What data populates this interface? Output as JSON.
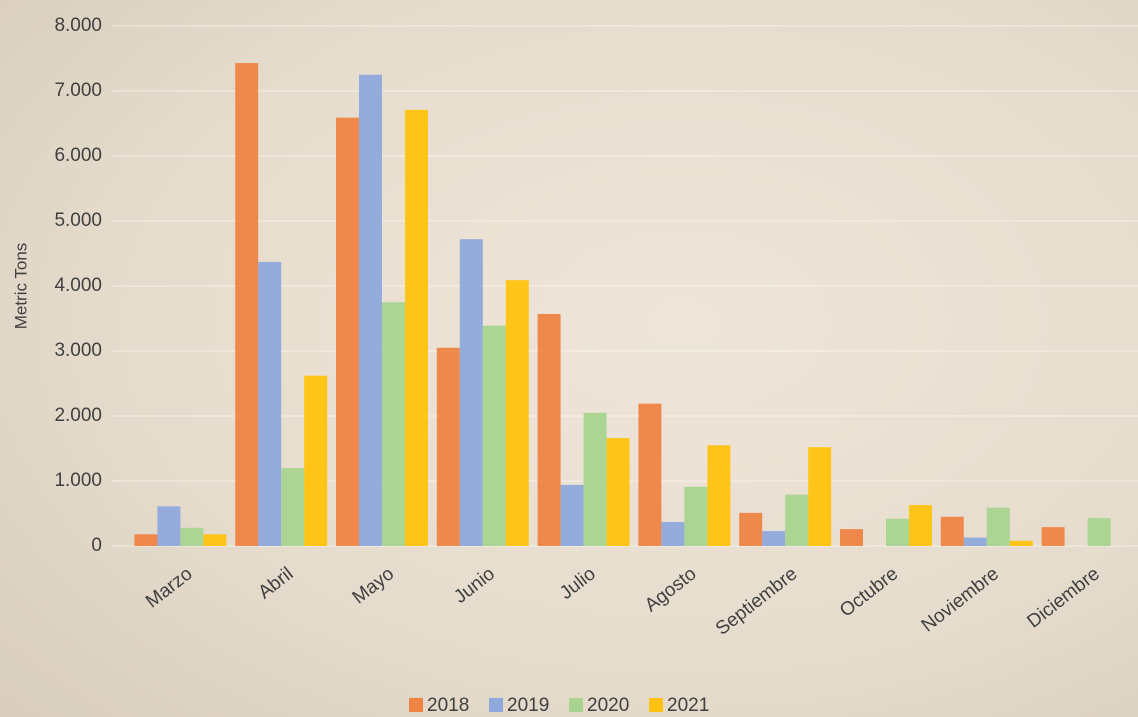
{
  "chart_data": {
    "type": "bar",
    "y_label": "Metric Tons",
    "categories": [
      "Marzo",
      "Abril",
      "Mayo",
      "Junio",
      "Julio",
      "Agosto",
      "Septiembre",
      "Octubre",
      "Noviembre",
      "Diciembre"
    ],
    "series": [
      {
        "name": "2018",
        "color": "#ef8443",
        "values": [
          180,
          7430,
          6590,
          3050,
          3570,
          2190,
          510,
          260,
          450,
          290
        ]
      },
      {
        "name": "2019",
        "color": "#8fa9dc",
        "values": [
          610,
          4370,
          7250,
          4720,
          940,
          370,
          230,
          0,
          130,
          0
        ]
      },
      {
        "name": "2020",
        "color": "#a9d490",
        "values": [
          280,
          1200,
          3750,
          3390,
          2050,
          910,
          790,
          420,
          590,
          430
        ]
      },
      {
        "name": "2021",
        "color": "#ffc20e",
        "values": [
          180,
          2620,
          6710,
          4090,
          1660,
          1550,
          1520,
          630,
          80,
          0
        ]
      }
    ],
    "ylim": [
      0,
      8000
    ],
    "yticks": [
      0,
      {
        "value": 1000,
        "label": "1.000"
      },
      {
        "value": 2000,
        "label": "2.000"
      },
      {
        "value": 3000,
        "label": "3.000"
      },
      {
        "value": 4000,
        "label": "4.000"
      },
      {
        "value": 5000,
        "label": "5.000"
      },
      {
        "value": 6000,
        "label": "6.000"
      },
      {
        "value": 7000,
        "label": "7.000"
      },
      {
        "value": 8000,
        "label": "8.000"
      }
    ],
    "grid": true
  }
}
